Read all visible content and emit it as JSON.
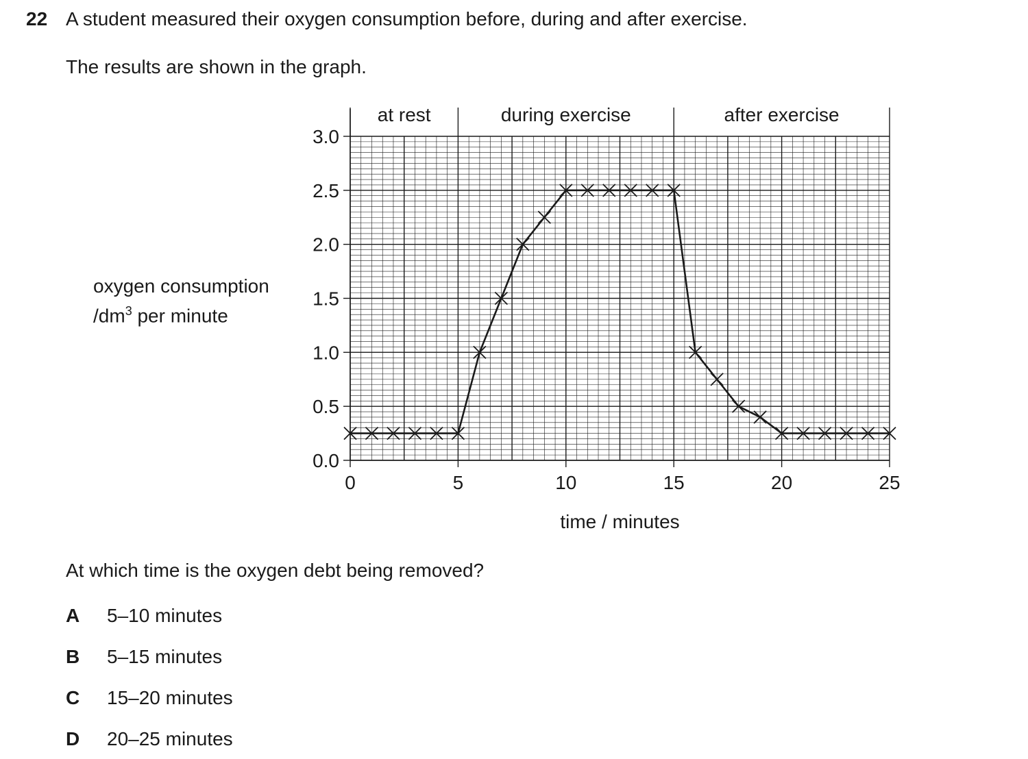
{
  "question": {
    "number": "22",
    "stem": "A student measured their oxygen consumption before, during and after exercise.",
    "subtext": "The results are shown in the graph.",
    "ask": "At which time is the oxygen debt being removed?",
    "options": [
      {
        "letter": "A",
        "text": "5–10 minutes"
      },
      {
        "letter": "B",
        "text": "5–15 minutes"
      },
      {
        "letter": "C",
        "text": "15–20 minutes"
      },
      {
        "letter": "D",
        "text": "20–25 minutes"
      }
    ]
  },
  "ylabel_line1": "oxygen consumption",
  "ylabel_unit_prefix": "/dm",
  "ylabel_superscript": "3",
  "ylabel_unit_suffix": " per minute",
  "chart_data": {
    "type": "line",
    "title": "",
    "xlabel": "time / minutes",
    "ylabel": "oxygen consumption / dm3 per minute",
    "xlim": [
      0,
      25
    ],
    "ylim": [
      0,
      3.0
    ],
    "xticks": [
      0,
      5,
      10,
      15,
      20,
      25
    ],
    "yticks": [
      0.0,
      0.5,
      1.0,
      1.5,
      2.0,
      2.5,
      3.0
    ],
    "ytick_labels": [
      "0.0",
      "0.5",
      "1.0",
      "1.5",
      "2.0",
      "2.5",
      "3.0"
    ],
    "grid": true,
    "regions": [
      {
        "label": "at rest",
        "from": 0,
        "to": 5
      },
      {
        "label": "during exercise",
        "from": 5,
        "to": 15
      },
      {
        "label": "after exercise",
        "from": 15,
        "to": 25
      }
    ],
    "series": [
      {
        "name": "oxygen consumption",
        "marker": "x",
        "x": [
          0,
          1,
          2,
          3,
          4,
          5,
          6,
          7,
          8,
          9,
          10,
          11,
          12,
          13,
          14,
          15,
          16,
          17,
          18,
          19,
          20,
          21,
          22,
          23,
          24,
          25
        ],
        "y": [
          0.25,
          0.25,
          0.25,
          0.25,
          0.25,
          0.25,
          1.0,
          1.5,
          2.0,
          2.25,
          2.5,
          2.5,
          2.5,
          2.5,
          2.5,
          2.5,
          1.0,
          0.75,
          0.5,
          0.4,
          0.25,
          0.25,
          0.25,
          0.25,
          0.25,
          0.25
        ]
      }
    ],
    "colors": {
      "ink": "#1a1a1a",
      "grid": "#1a1a1a"
    }
  }
}
